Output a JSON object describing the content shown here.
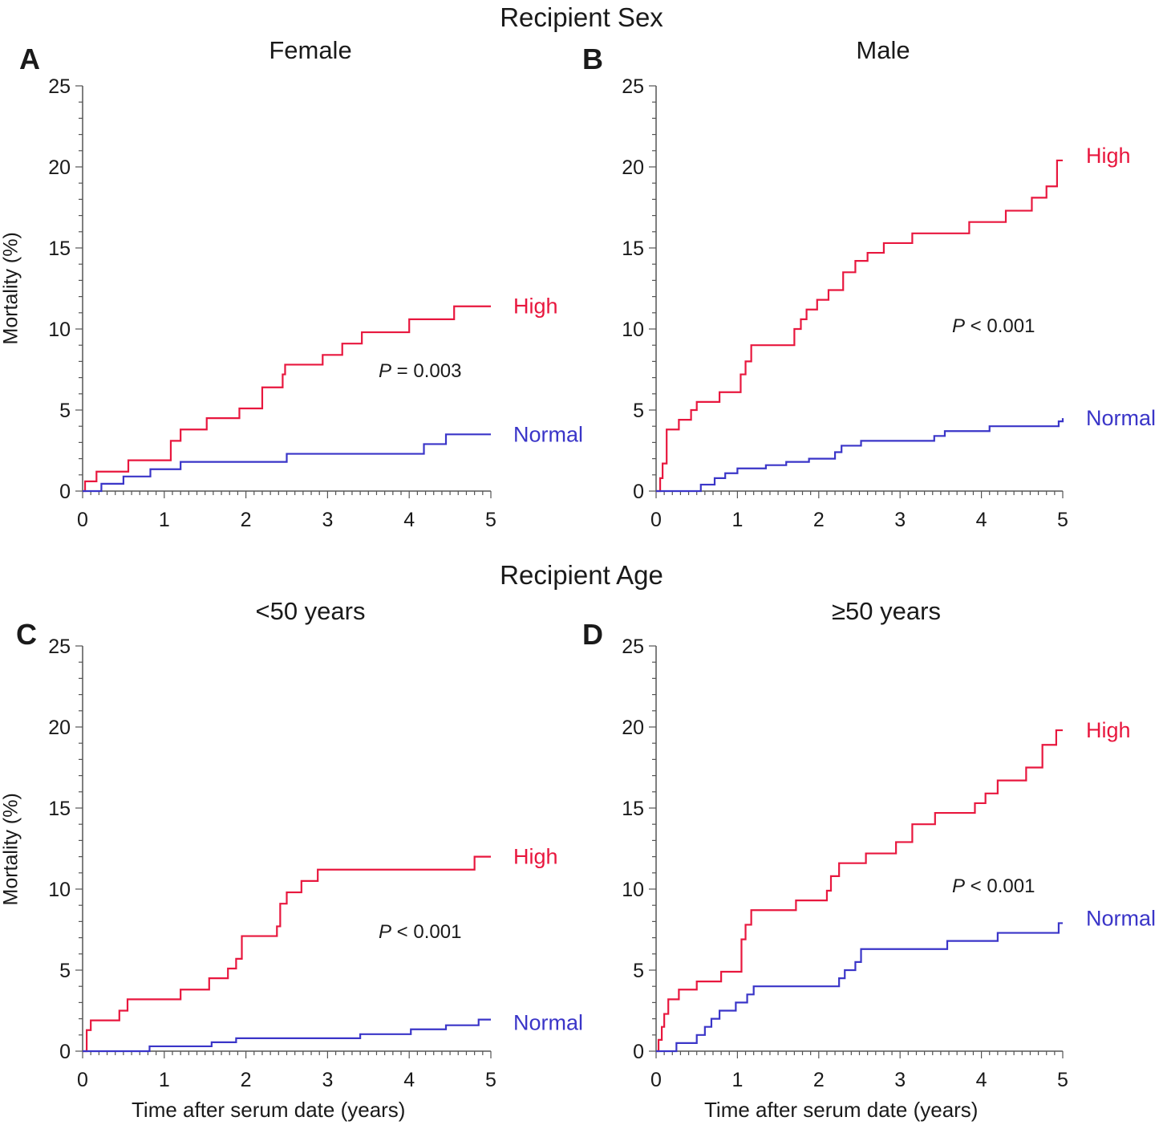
{
  "sections": {
    "sex_title": "Recipient Sex",
    "age_title": "Recipient Age"
  },
  "colors": {
    "high": "#e8173e",
    "normal": "#3a35c8",
    "axis": "#555555"
  },
  "chart_data": [
    {
      "type": "line",
      "letter": "A",
      "title": "Female",
      "xlabel": "",
      "ylabel": "Mortality (%)",
      "xlim": [
        0,
        5
      ],
      "ylim": [
        0,
        25
      ],
      "xticks": [
        0,
        1,
        2,
        3,
        4,
        5
      ],
      "yticks": [
        0,
        5,
        10,
        15,
        20,
        25
      ],
      "annotation": {
        "p_symbol": "P",
        "p_text": "= 0.003"
      },
      "series": [
        {
          "name": "High",
          "color": "#e8173e",
          "x": [
            0,
            0.03,
            0.17,
            0.56,
            1.08,
            1.2,
            1.52,
            1.92,
            2.2,
            2.22,
            2.45,
            2.48,
            2.94,
            3.18,
            3.42,
            4.0,
            4.55,
            5.0
          ],
          "y": [
            0,
            0.6,
            1.2,
            1.9,
            3.1,
            3.8,
            4.5,
            5.1,
            6.4,
            6.4,
            7.2,
            7.8,
            8.4,
            9.1,
            9.8,
            10.6,
            11.4,
            11.4
          ]
        },
        {
          "name": "Normal",
          "color": "#3a35c8",
          "x": [
            0,
            0.23,
            0.5,
            0.83,
            1.2,
            2.5,
            4.18,
            4.45,
            5.0
          ],
          "y": [
            0,
            0.45,
            0.9,
            1.35,
            1.8,
            2.3,
            2.9,
            3.5,
            3.5
          ]
        }
      ]
    },
    {
      "type": "line",
      "letter": "B",
      "title": "Male",
      "xlabel": "",
      "ylabel": "",
      "xlim": [
        0,
        5
      ],
      "ylim": [
        0,
        25
      ],
      "xticks": [
        0,
        1,
        2,
        3,
        4,
        5
      ],
      "yticks": [
        0,
        5,
        10,
        15,
        20,
        25
      ],
      "annotation": {
        "p_symbol": "P",
        "p_text": "< 0.001"
      },
      "series": [
        {
          "name": "High",
          "color": "#e8173e",
          "x": [
            0,
            0.05,
            0.08,
            0.13,
            0.28,
            0.43,
            0.5,
            0.78,
            1.04,
            1.1,
            1.17,
            1.7,
            1.78,
            1.85,
            1.98,
            2.12,
            2.3,
            2.45,
            2.6,
            2.8,
            3.15,
            3.85,
            4.3,
            4.62,
            4.8,
            4.93,
            5.0
          ],
          "y": [
            0,
            0.8,
            1.7,
            3.8,
            4.4,
            5.0,
            5.5,
            6.1,
            7.2,
            8.0,
            9.0,
            10.0,
            10.6,
            11.2,
            11.8,
            12.4,
            13.5,
            14.2,
            14.7,
            15.3,
            15.9,
            16.6,
            17.3,
            18.1,
            18.8,
            20.4,
            20.4
          ]
        },
        {
          "name": "Normal",
          "color": "#3a35c8",
          "x": [
            0,
            0.55,
            0.72,
            0.85,
            1.0,
            1.35,
            1.6,
            1.88,
            2.2,
            2.28,
            2.52,
            3.42,
            3.55,
            4.1,
            4.95,
            5.0
          ],
          "y": [
            0,
            0.4,
            0.8,
            1.1,
            1.4,
            1.6,
            1.8,
            2.0,
            2.4,
            2.8,
            3.1,
            3.4,
            3.7,
            4.0,
            4.3,
            4.5
          ]
        }
      ]
    },
    {
      "type": "line",
      "letter": "C",
      "title": "<50 years",
      "xlabel": "Time after serum date (years)",
      "ylabel": "Mortality (%)",
      "xlim": [
        0,
        5
      ],
      "ylim": [
        0,
        25
      ],
      "xticks": [
        0,
        1,
        2,
        3,
        4,
        5
      ],
      "yticks": [
        0,
        5,
        10,
        15,
        20,
        25
      ],
      "annotation": {
        "p_symbol": "P",
        "p_text": "< 0.001"
      },
      "series": [
        {
          "name": "High",
          "color": "#e8173e",
          "x": [
            0,
            0.05,
            0.1,
            0.45,
            0.55,
            1.2,
            1.55,
            1.78,
            1.88,
            1.95,
            2.38,
            2.42,
            2.5,
            2.68,
            2.88,
            4.8,
            5.0
          ],
          "y": [
            0,
            1.3,
            1.9,
            2.5,
            3.2,
            3.8,
            4.5,
            5.1,
            5.7,
            7.1,
            7.7,
            9.1,
            9.8,
            10.5,
            11.2,
            12.0,
            12.0
          ]
        },
        {
          "name": "Normal",
          "color": "#3a35c8",
          "x": [
            0,
            0.82,
            1.58,
            1.88,
            3.4,
            4.02,
            4.45,
            4.85,
            5.0
          ],
          "y": [
            0,
            0.3,
            0.55,
            0.8,
            1.05,
            1.35,
            1.6,
            1.95,
            1.95
          ]
        }
      ]
    },
    {
      "type": "line",
      "letter": "D",
      "title": "≥50 years",
      "xlabel": "Time after serum date (years)",
      "ylabel": "",
      "xlim": [
        0,
        5
      ],
      "ylim": [
        0,
        25
      ],
      "xticks": [
        0,
        1,
        2,
        3,
        4,
        5
      ],
      "yticks": [
        0,
        5,
        10,
        15,
        20,
        25
      ],
      "annotation": {
        "p_symbol": "P",
        "p_text": "< 0.001"
      },
      "series": [
        {
          "name": "High",
          "color": "#e8173e",
          "x": [
            0,
            0.03,
            0.07,
            0.1,
            0.15,
            0.28,
            0.5,
            0.8,
            1.05,
            1.1,
            1.17,
            1.72,
            2.1,
            2.15,
            2.25,
            2.58,
            2.95,
            3.15,
            3.43,
            3.92,
            4.05,
            4.2,
            4.55,
            4.75,
            4.92,
            5.0
          ],
          "y": [
            0,
            0.7,
            1.5,
            2.3,
            3.2,
            3.8,
            4.3,
            4.9,
            6.9,
            7.8,
            8.7,
            9.3,
            9.9,
            10.8,
            11.6,
            12.2,
            12.9,
            14.0,
            14.7,
            15.3,
            15.9,
            16.7,
            17.5,
            18.9,
            19.8,
            19.8
          ]
        },
        {
          "name": "Normal",
          "color": "#3a35c8",
          "x": [
            0,
            0.25,
            0.5,
            0.6,
            0.68,
            0.78,
            0.98,
            1.12,
            1.2,
            2.25,
            2.32,
            2.45,
            2.52,
            3.58,
            4.2,
            4.95,
            5.0
          ],
          "y": [
            0,
            0.5,
            1.0,
            1.5,
            2.0,
            2.5,
            3.0,
            3.5,
            4.0,
            4.5,
            5.0,
            5.5,
            6.3,
            6.8,
            7.3,
            7.9,
            7.9
          ]
        }
      ]
    }
  ]
}
